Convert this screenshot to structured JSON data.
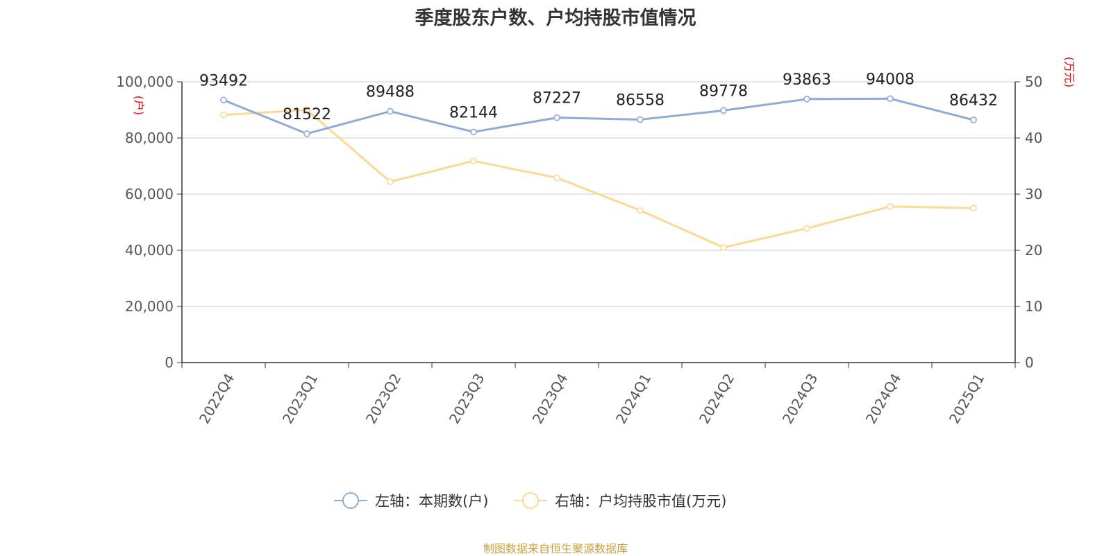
{
  "title": "季度股东户数、户均持股市值情况",
  "source": "制图数据来自恒生聚源数据库",
  "colors": {
    "left_series": "#8eaadb",
    "right_series": "#fdd893",
    "axis_unit": "#e60000",
    "source": "#c8a23c"
  },
  "chart_data": {
    "type": "line",
    "categories": [
      "2022Q4",
      "2023Q1",
      "2023Q2",
      "2023Q3",
      "2023Q4",
      "2024Q1",
      "2024Q2",
      "2024Q3",
      "2024Q4",
      "2025Q1"
    ],
    "left_axis": {
      "unit": "(户)",
      "min": 0,
      "max": 100000,
      "ticks": [
        "0",
        "20,000",
        "40,000",
        "60,000",
        "80,000",
        "100,000"
      ]
    },
    "right_axis": {
      "unit": "(万元)",
      "min": 0,
      "max": 50,
      "ticks": [
        "0",
        "10",
        "20",
        "30",
        "40",
        "50"
      ]
    },
    "grid": true,
    "legend_position": "bottom-center",
    "series": [
      {
        "name": "左轴：本期数(户)",
        "axis": "left",
        "values": [
          93492,
          81522,
          89488,
          82144,
          87227,
          86558,
          89778,
          93863,
          94008,
          86432
        ],
        "labels": [
          "93492",
          "81522",
          "89488",
          "82144",
          "87227",
          "86558",
          "89778",
          "93863",
          "94008",
          "86432"
        ]
      },
      {
        "name": "右轴：户均持股市值(万元)",
        "axis": "right",
        "values": [
          44.1,
          45.0,
          32.2,
          35.9,
          32.9,
          27.1,
          20.5,
          23.9,
          27.8,
          27.5
        ]
      }
    ]
  }
}
